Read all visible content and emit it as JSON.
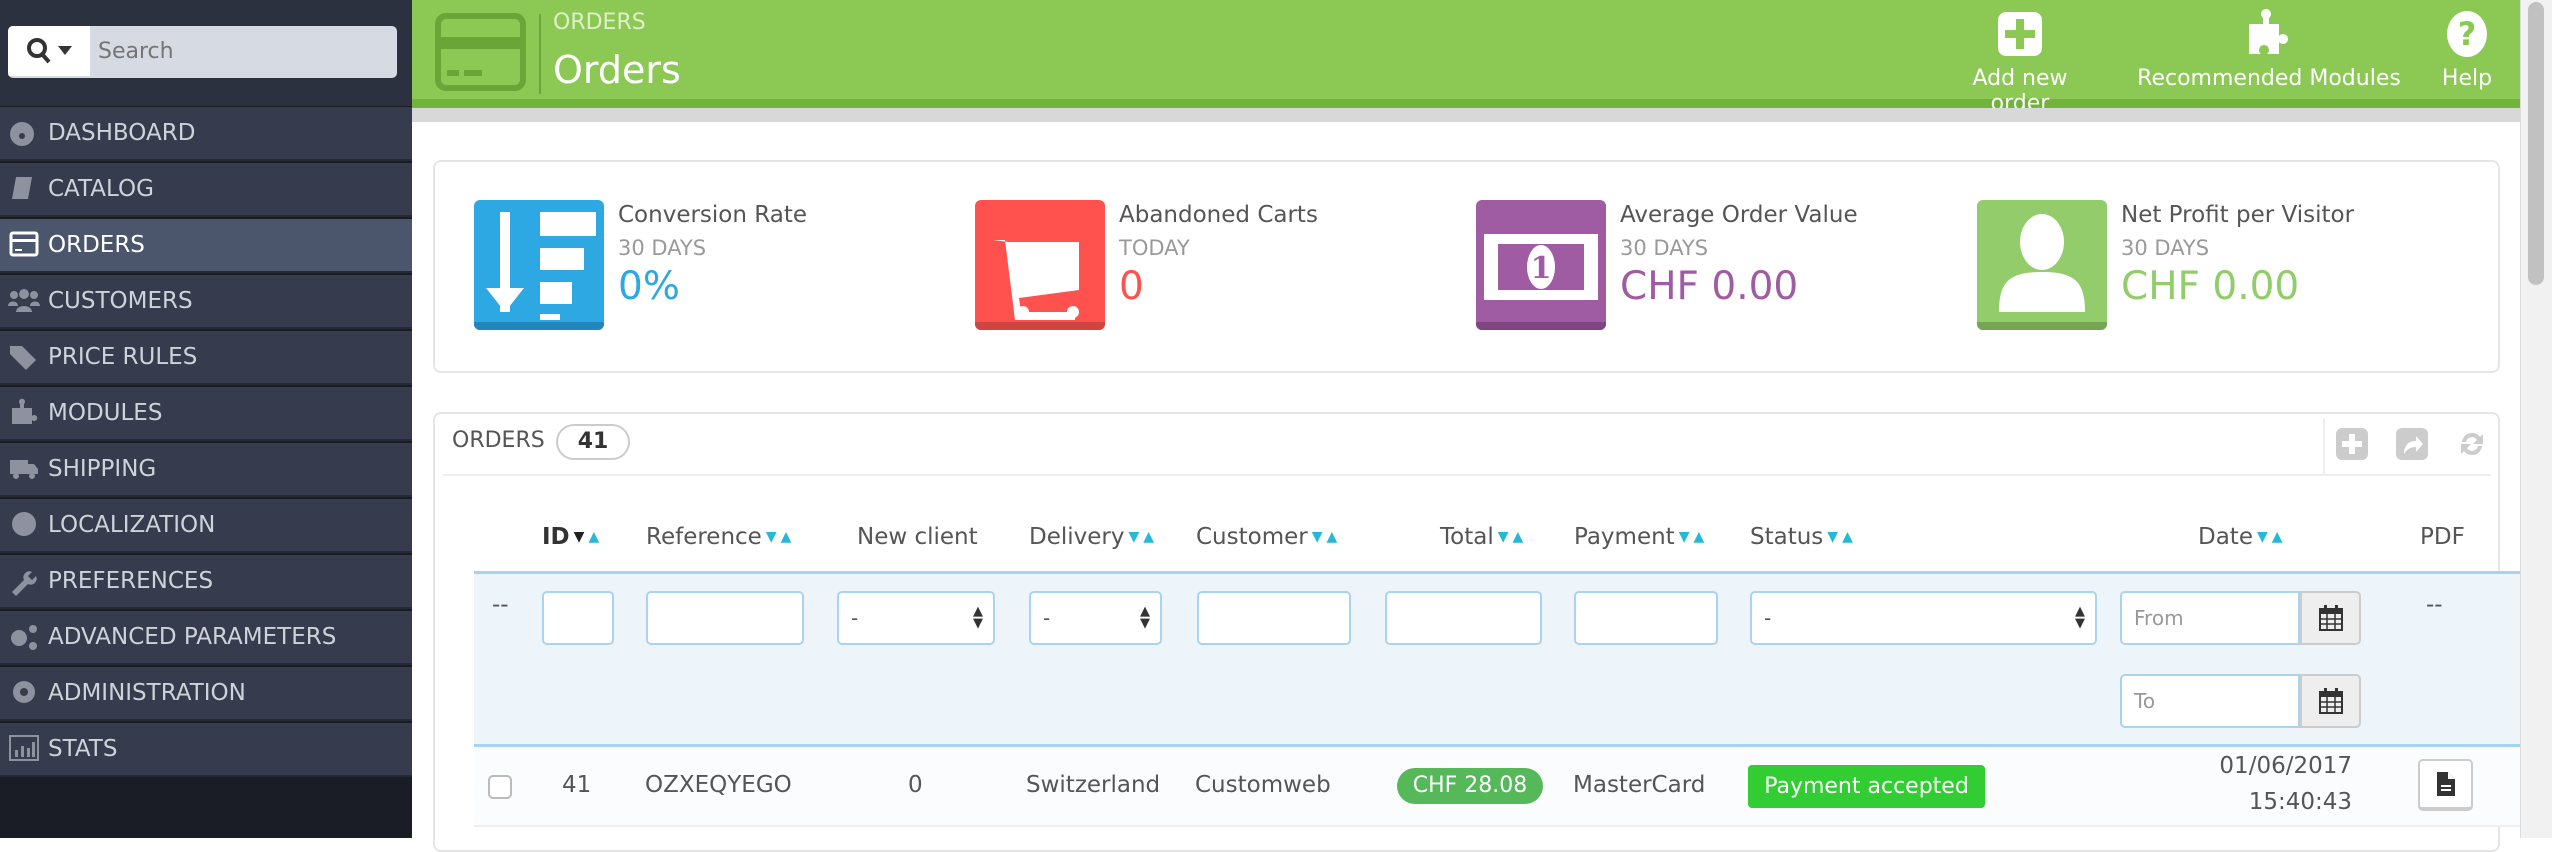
{
  "search": {
    "placeholder": "Search"
  },
  "sidebar": {
    "items": [
      {
        "label": "DASHBOARD",
        "icon": "dashboard-icon"
      },
      {
        "label": "CATALOG",
        "icon": "book-icon"
      },
      {
        "label": "ORDERS",
        "icon": "credit-card-icon",
        "active": true
      },
      {
        "label": "CUSTOMERS",
        "icon": "users-icon"
      },
      {
        "label": "PRICE RULES",
        "icon": "tags-icon"
      },
      {
        "label": "MODULES",
        "icon": "puzzle-icon"
      },
      {
        "label": "SHIPPING",
        "icon": "truck-icon"
      },
      {
        "label": "LOCALIZATION",
        "icon": "globe-icon"
      },
      {
        "label": "PREFERENCES",
        "icon": "wrench-icon"
      },
      {
        "label": "ADVANCED PARAMETERS",
        "icon": "gears-icon"
      },
      {
        "label": "ADMINISTRATION",
        "icon": "gear-icon"
      },
      {
        "label": "STATS",
        "icon": "bar-chart-icon"
      }
    ]
  },
  "header": {
    "breadcrumb": "ORDERS",
    "title": "Orders",
    "actions": {
      "add": "Add new order",
      "modules": "Recommended Modules",
      "help": "Help"
    }
  },
  "colors": {
    "header": "#8bc954",
    "conversion": "#2ea8e2",
    "carts": "#ff524f",
    "average": "#a05ca3",
    "profit": "#92cc6b",
    "status_accepted": "#32cd32",
    "total_badge": "#55b95a"
  },
  "kpis": [
    {
      "title": "Conversion Rate",
      "period": "30 DAYS",
      "value": "0%"
    },
    {
      "title": "Abandoned Carts",
      "period": "TODAY",
      "value": "0"
    },
    {
      "title": "Average Order Value",
      "period": "30 DAYS",
      "value": "CHF 0.00"
    },
    {
      "title": "Net Profit per Visitor",
      "period": "30 DAYS",
      "value": "CHF 0.00"
    }
  ],
  "orders": {
    "title": "ORDERS",
    "count": "41",
    "columns": {
      "id": "ID",
      "reference": "Reference",
      "new_client": "New client",
      "delivery": "Delivery",
      "customer": "Customer",
      "total": "Total",
      "payment": "Payment",
      "status": "Status",
      "date": "Date",
      "pdf": "PDF"
    },
    "filters": {
      "empty": "--",
      "select_default": "-",
      "date_from": "From",
      "date_to": "To"
    },
    "rows": [
      {
        "id": "41",
        "reference": "OZXEQYEGO",
        "new_client": "0",
        "delivery": "Switzerland",
        "customer": "Customweb",
        "total": "CHF 28.08",
        "payment": "MasterCard",
        "status": "Payment accepted",
        "date": "01/06/2017",
        "time": "15:40:43"
      }
    ]
  }
}
